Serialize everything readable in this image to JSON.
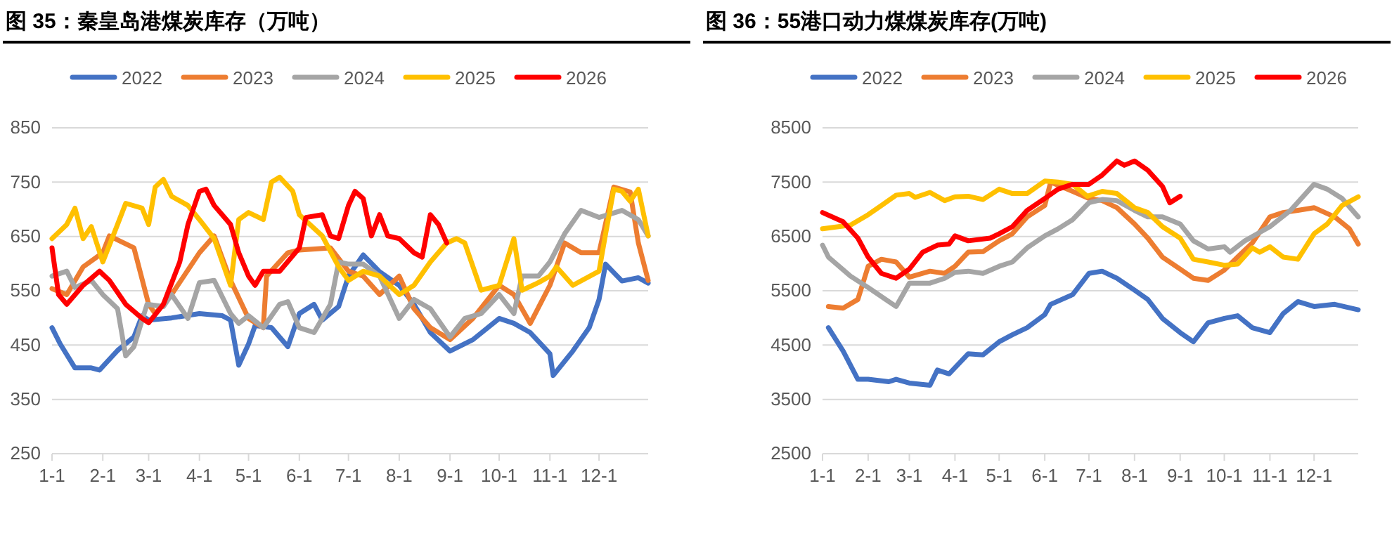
{
  "chart_data": [
    {
      "type": "line",
      "title": "图 35：秦皇岛港煤炭库存（万吨）",
      "legend": "top",
      "grid": "y",
      "ylim": [
        250,
        850
      ],
      "yticks": [
        250,
        350,
        450,
        550,
        650,
        750,
        850
      ],
      "xlim": [
        "--01-01",
        "--12-31"
      ],
      "xticks": [
        {
          "value": "--01-01",
          "label": "1-1"
        },
        {
          "value": "--02-01",
          "label": "2-1"
        },
        {
          "value": "--03-01",
          "label": "3-1"
        },
        {
          "value": "--04-01",
          "label": "4-1"
        },
        {
          "value": "--05-01",
          "label": "5-1"
        },
        {
          "value": "--06-01",
          "label": "6-1"
        },
        {
          "value": "--07-01",
          "label": "7-1"
        },
        {
          "value": "--08-01",
          "label": "8-1"
        },
        {
          "value": "--09-01",
          "label": "9-1"
        },
        {
          "value": "--10-01",
          "label": "10-1"
        },
        {
          "value": "--11-01",
          "label": "11-1"
        },
        {
          "value": "--12-01",
          "label": "12-1"
        }
      ],
      "series": [
        {
          "name": "2022",
          "color": "#4472c4",
          "x": [
            "--01-01",
            "--01-06",
            "--01-15",
            "--01-25",
            "--01-30",
            "--02-10",
            "--02-20",
            "--02-25",
            "--03-01",
            "--03-15",
            "--04-01",
            "--04-15",
            "--04-20",
            "--04-25",
            "--05-01",
            "--05-05",
            "--05-15",
            "--05-25",
            "--06-01",
            "--06-10",
            "--06-15",
            "--06-25",
            "--07-01",
            "--07-10",
            "--07-20",
            "--08-01",
            "--08-10",
            "--08-20",
            "--09-01",
            "--09-15",
            "--10-01",
            "--10-10",
            "--10-20",
            "--11-01",
            "--11-03",
            "--11-15",
            "--11-25",
            "--12-01",
            "--12-05",
            "--12-15",
            "--12-25",
            "--12-31"
          ],
          "values": [
            482,
            452,
            408,
            408,
            404,
            440,
            465,
            504,
            496,
            500,
            508,
            504,
            496,
            413,
            452,
            486,
            482,
            447,
            508,
            525,
            496,
            521,
            577,
            616,
            585,
            560,
            525,
            473,
            439,
            460,
            499,
            490,
            473,
            434,
            394,
            439,
            482,
            534,
            599,
            568,
            574,
            564
          ]
        },
        {
          "name": "2023",
          "color": "#ed7d31",
          "x": [
            "--01-01",
            "--01-10",
            "--01-20",
            "--02-01",
            "--02-05",
            "--02-20",
            "--03-01",
            "--03-05",
            "--03-15",
            "--04-01",
            "--04-10",
            "--04-20",
            "--05-01",
            "--05-10",
            "--05-12",
            "--05-25",
            "--06-01",
            "--06-20",
            "--07-01",
            "--07-10",
            "--07-20",
            "--08-01",
            "--08-10",
            "--08-20",
            "--09-01",
            "--09-15",
            "--10-01",
            "--10-10",
            "--10-20",
            "--11-01",
            "--11-10",
            "--11-20",
            "--12-01",
            "--12-10",
            "--12-20",
            "--12-25",
            "--12-31"
          ],
          "values": [
            554,
            543,
            594,
            620,
            651,
            629,
            525,
            508,
            543,
            620,
            651,
            569,
            499,
            482,
            577,
            620,
            625,
            629,
            586,
            577,
            543,
            577,
            517,
            482,
            460,
            499,
            560,
            543,
            490,
            560,
            638,
            620,
            620,
            741,
            732,
            638,
            569
          ]
        },
        {
          "name": "2024",
          "color": "#a5a5a5",
          "x": [
            "--01-01",
            "--01-10",
            "--01-15",
            "--01-25",
            "--02-01",
            "--02-10",
            "--02-15",
            "--02-20",
            "--02-28",
            "--03-10",
            "--03-15",
            "--03-25",
            "--04-01",
            "--04-10",
            "--04-20",
            "--04-25",
            "--05-01",
            "--05-10",
            "--05-20",
            "--05-25",
            "--06-01",
            "--06-10",
            "--06-20",
            "--06-25",
            "--07-01",
            "--07-10",
            "--07-20",
            "--08-01",
            "--08-10",
            "--08-20",
            "--09-01",
            "--09-10",
            "--09-20",
            "--10-01",
            "--10-10",
            "--10-15",
            "--10-25",
            "--11-01",
            "--11-10",
            "--11-20",
            "--12-01",
            "--12-15",
            "--12-25",
            "--12-31"
          ],
          "values": [
            577,
            586,
            556,
            569,
            543,
            517,
            430,
            447,
            525,
            521,
            543,
            499,
            565,
            569,
            508,
            490,
            504,
            482,
            525,
            530,
            482,
            473,
            525,
            603,
            599,
            599,
            577,
            499,
            534,
            517,
            465,
            499,
            508,
            543,
            508,
            577,
            577,
            603,
            655,
            698,
            685,
            698,
            681,
            651
          ]
        },
        {
          "name": "2025",
          "color": "#ffc000",
          "x": [
            "--01-01",
            "--01-10",
            "--01-15",
            "--01-20",
            "--01-25",
            "--02-01",
            "--02-10",
            "--02-15",
            "--02-25",
            "--03-01",
            "--03-05",
            "--03-10",
            "--03-15",
            "--03-25",
            "--04-01",
            "--04-10",
            "--04-20",
            "--04-25",
            "--05-01",
            "--05-10",
            "--05-15",
            "--05-20",
            "--05-28",
            "--06-01",
            "--06-15",
            "--06-25",
            "--07-01",
            "--07-10",
            "--07-20",
            "--08-01",
            "--08-10",
            "--08-20",
            "--08-30",
            "--09-05",
            "--09-10",
            "--09-20",
            "--10-01",
            "--10-10",
            "--10-15",
            "--10-25",
            "--11-01",
            "--11-05",
            "--11-15",
            "--12-01",
            "--12-05",
            "--12-10",
            "--12-15",
            "--12-20",
            "--12-25",
            "--12-31"
          ],
          "values": [
            646,
            672,
            702,
            646,
            668,
            603,
            672,
            711,
            702,
            672,
            741,
            755,
            724,
            707,
            681,
            646,
            560,
            681,
            694,
            681,
            750,
            759,
            733,
            690,
            651,
            594,
            569,
            586,
            577,
            543,
            560,
            603,
            638,
            646,
            638,
            551,
            560,
            646,
            551,
            565,
            577,
            594,
            560,
            586,
            655,
            737,
            733,
            715,
            737,
            651
          ]
        },
        {
          "name": "2026",
          "color": "#ff0000",
          "x": [
            "--01-01",
            "--01-05",
            "--01-10",
            "--01-20",
            "--01-30",
            "--02-05",
            "--02-15",
            "--02-25",
            "--03-01",
            "--03-10",
            "--03-20",
            "--03-25",
            "--04-01",
            "--04-05",
            "--04-10",
            "--04-20",
            "--04-25",
            "--05-01",
            "--05-05",
            "--05-10",
            "--05-20",
            "--06-01",
            "--06-05",
            "--06-15",
            "--06-20",
            "--06-25",
            "--07-01",
            "--07-05",
            "--07-10",
            "--07-15",
            "--07-20",
            "--07-25",
            "--08-01",
            "--08-10",
            "--08-15",
            "--08-20",
            "--08-25",
            "--08-30"
          ],
          "values": [
            629,
            543,
            525,
            560,
            586,
            569,
            525,
            499,
            491,
            525,
            603,
            672,
            733,
            737,
            707,
            672,
            620,
            577,
            560,
            586,
            586,
            629,
            685,
            690,
            651,
            646,
            707,
            733,
            720,
            651,
            690,
            651,
            646,
            620,
            612,
            690,
            672,
            638
          ]
        }
      ]
    },
    {
      "type": "line",
      "title": "图 36：55港口动力煤煤炭库存(万吨)",
      "legend": "top",
      "grid": "y",
      "ylim": [
        2500,
        8500
      ],
      "yticks": [
        2500,
        3500,
        4500,
        5500,
        6500,
        7500,
        8500
      ],
      "xlim": [
        "--01-01",
        "--12-31"
      ],
      "xticks": [
        {
          "value": "--01-01",
          "label": "1-1"
        },
        {
          "value": "--02-01",
          "label": "2-1"
        },
        {
          "value": "--03-01",
          "label": "3-1"
        },
        {
          "value": "--04-01",
          "label": "4-1"
        },
        {
          "value": "--05-01",
          "label": "5-1"
        },
        {
          "value": "--06-01",
          "label": "6-1"
        },
        {
          "value": "--07-01",
          "label": "7-1"
        },
        {
          "value": "--08-01",
          "label": "8-1"
        },
        {
          "value": "--09-01",
          "label": "9-1"
        },
        {
          "value": "--10-01",
          "label": "10-1"
        },
        {
          "value": "--11-01",
          "label": "11-1"
        },
        {
          "value": "--12-01",
          "label": "12-1"
        }
      ],
      "series": [
        {
          "name": "2022",
          "color": "#4472c4",
          "x": [
            "--01-05",
            "--01-15",
            "--01-25",
            "--02-01",
            "--02-15",
            "--02-20",
            "--03-01",
            "--03-15",
            "--03-20",
            "--03-28",
            "--04-10",
            "--04-20",
            "--05-01",
            "--05-10",
            "--05-20",
            "--06-01",
            "--06-05",
            "--06-20",
            "--07-01",
            "--07-10",
            "--07-20",
            "--08-01",
            "--08-10",
            "--08-20",
            "--09-01",
            "--09-10",
            "--09-20",
            "--10-01",
            "--10-10",
            "--10-20",
            "--11-01",
            "--11-10",
            "--11-20",
            "--12-01",
            "--12-15",
            "--12-31"
          ],
          "values": [
            4820,
            4390,
            3870,
            3870,
            3825,
            3870,
            3800,
            3760,
            4040,
            3970,
            4340,
            4320,
            4560,
            4690,
            4820,
            5060,
            5250,
            5430,
            5820,
            5860,
            5730,
            5510,
            5340,
            4990,
            4730,
            4560,
            4910,
            4990,
            5040,
            4820,
            4730,
            5080,
            5300,
            5210,
            5250,
            5150
          ]
        },
        {
          "name": "2023",
          "color": "#ed7d31",
          "x": [
            "--01-05",
            "--01-15",
            "--01-25",
            "--02-01",
            "--02-10",
            "--02-20",
            "--03-01",
            "--03-15",
            "--03-25",
            "--04-01",
            "--04-10",
            "--04-20",
            "--05-01",
            "--05-10",
            "--05-20",
            "--06-01",
            "--06-05",
            "--06-20",
            "--07-01",
            "--07-10",
            "--07-20",
            "--08-01",
            "--08-10",
            "--08-20",
            "--09-01",
            "--09-10",
            "--09-20",
            "--10-01",
            "--10-10",
            "--10-20",
            "--11-01",
            "--11-10",
            "--11-20",
            "--12-01",
            "--12-15",
            "--12-25",
            "--12-31"
          ],
          "values": [
            5210,
            5180,
            5340,
            5950,
            6080,
            6030,
            5750,
            5860,
            5820,
            5950,
            6210,
            6220,
            6420,
            6550,
            6860,
            7070,
            7500,
            7330,
            7200,
            7160,
            7030,
            6730,
            6470,
            6120,
            5900,
            5730,
            5690,
            5880,
            6120,
            6380,
            6860,
            6940,
            6980,
            7030,
            6860,
            6640,
            6360
          ]
        },
        {
          "name": "2024",
          "color": "#a5a5a5",
          "x": [
            "--01-01",
            "--01-05",
            "--01-20",
            "--02-01",
            "--02-15",
            "--02-20",
            "--03-01",
            "--03-15",
            "--03-25",
            "--04-01",
            "--04-10",
            "--04-20",
            "--05-01",
            "--05-10",
            "--05-20",
            "--06-01",
            "--06-10",
            "--06-20",
            "--07-01",
            "--07-10",
            "--07-20",
            "--08-01",
            "--08-10",
            "--08-20",
            "--09-01",
            "--09-10",
            "--09-20",
            "--10-01",
            "--10-05",
            "--10-15",
            "--11-01",
            "--11-15",
            "--12-01",
            "--12-10",
            "--12-20",
            "--12-31"
          ],
          "values": [
            6340,
            6120,
            5770,
            5560,
            5300,
            5210,
            5640,
            5640,
            5730,
            5840,
            5860,
            5820,
            5950,
            6030,
            6290,
            6510,
            6640,
            6810,
            7120,
            7180,
            7160,
            6980,
            6860,
            6860,
            6730,
            6420,
            6270,
            6310,
            6210,
            6420,
            6680,
            6980,
            7460,
            7370,
            7200,
            6860
          ]
        },
        {
          "name": "2025",
          "color": "#ffc000",
          "x": [
            "--01-01",
            "--01-20",
            "--02-01",
            "--02-10",
            "--02-20",
            "--03-01",
            "--03-05",
            "--03-15",
            "--03-25",
            "--04-01",
            "--04-10",
            "--04-20",
            "--05-01",
            "--05-10",
            "--05-20",
            "--06-01",
            "--06-10",
            "--06-20",
            "--06-30",
            "--07-10",
            "--07-20",
            "--08-01",
            "--08-10",
            "--08-20",
            "--09-01",
            "--09-10",
            "--09-20",
            "--10-01",
            "--10-10",
            "--10-20",
            "--10-25",
            "--11-01",
            "--11-10",
            "--11-20",
            "--12-01",
            "--12-10",
            "--12-20",
            "--12-31"
          ],
          "values": [
            6640,
            6710,
            6900,
            7070,
            7260,
            7290,
            7220,
            7310,
            7160,
            7230,
            7240,
            7180,
            7370,
            7290,
            7290,
            7520,
            7500,
            7460,
            7240,
            7330,
            7290,
            7030,
            6940,
            6680,
            6470,
            6080,
            6030,
            5970,
            5990,
            6290,
            6210,
            6310,
            6120,
            6080,
            6550,
            6730,
            7070,
            7230
          ]
        },
        {
          "name": "2026",
          "color": "#ff0000",
          "x": [
            "--01-01",
            "--01-15",
            "--01-25",
            "--02-01",
            "--02-10",
            "--02-20",
            "--03-01",
            "--03-10",
            "--03-20",
            "--03-28",
            "--04-01",
            "--04-10",
            "--04-25",
            "--05-01",
            "--05-10",
            "--05-20",
            "--06-01",
            "--06-10",
            "--06-20",
            "--07-01",
            "--07-10",
            "--07-20",
            "--07-25",
            "--08-01",
            "--08-10",
            "--08-20",
            "--08-25",
            "--09-01"
          ],
          "values": [
            6940,
            6770,
            6470,
            6120,
            5820,
            5730,
            5900,
            6210,
            6340,
            6360,
            6510,
            6420,
            6470,
            6550,
            6680,
            6980,
            7200,
            7370,
            7460,
            7460,
            7630,
            7890,
            7810,
            7890,
            7720,
            7420,
            7120,
            7240
          ]
        }
      ]
    }
  ]
}
